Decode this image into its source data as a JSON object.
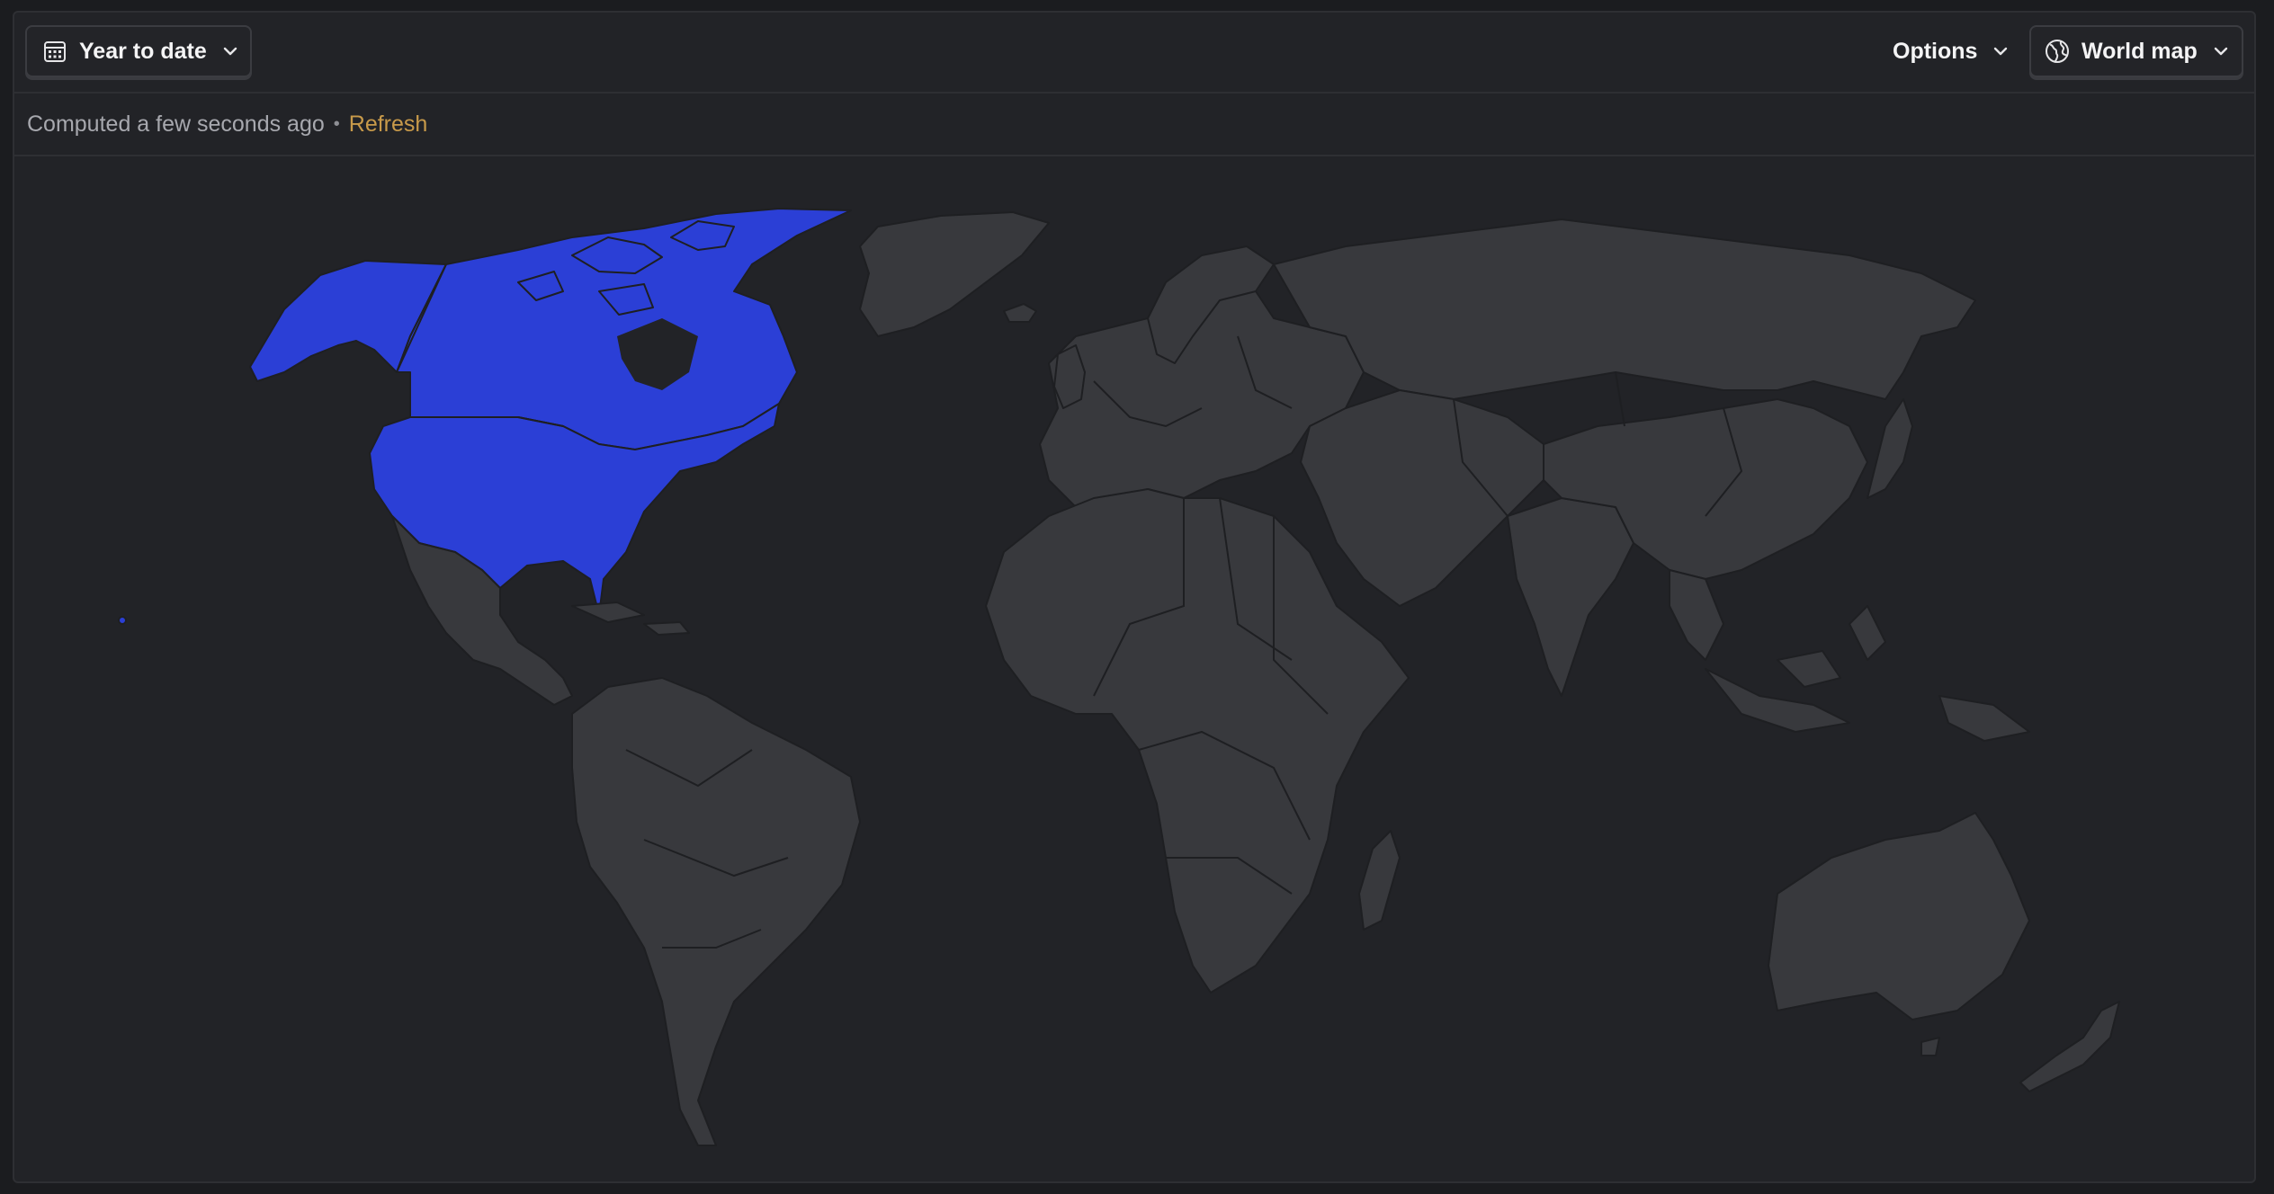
{
  "toolbar": {
    "date_range_label": "Year to date",
    "options_label": "Options",
    "view_label": "World map"
  },
  "status": {
    "computed_text": "Computed a few seconds ago",
    "separator": "•",
    "refresh_label": "Refresh"
  },
  "map": {
    "highlighted_regions": [
      "United States",
      "Canada"
    ],
    "highlight_color": "#2b3fd6",
    "base_color": "#38393d",
    "background_color": "#222327"
  },
  "colors": {
    "accent_link": "#c89a4a",
    "text_primary": "#f4f4f5",
    "text_muted": "#a7a8ae"
  },
  "icons": {
    "date": "calendar-icon",
    "chevron": "chevron-down-icon",
    "globe": "globe-icon"
  }
}
